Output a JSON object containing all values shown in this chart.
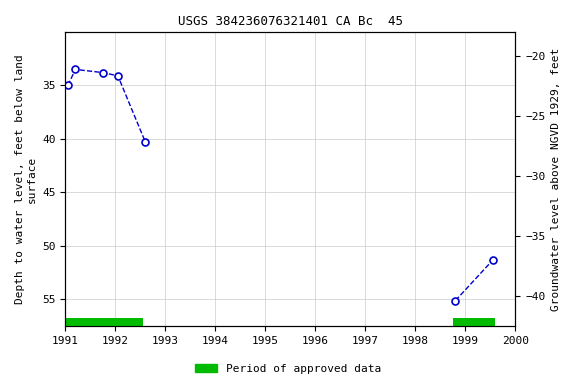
{
  "title": "USGS 384236076321401 CA Bc  45",
  "segments": [
    {
      "x": [
        1991.05,
        1991.2,
        1991.75,
        1992.05,
        1992.6
      ],
      "y": [
        35.0,
        33.5,
        33.8,
        34.1,
        40.3
      ]
    },
    {
      "x": [
        1998.8,
        1999.55
      ],
      "y": [
        55.1,
        51.3
      ]
    }
  ],
  "xlim": [
    1991,
    2000
  ],
  "xticks": [
    1991,
    1992,
    1993,
    1994,
    1995,
    1996,
    1997,
    1998,
    1999,
    2000
  ],
  "ylim_left": [
    57.5,
    30
  ],
  "ylim_right": [
    -42.5,
    -18
  ],
  "yticks_left": [
    35,
    40,
    45,
    50,
    55
  ],
  "yticks_right": [
    -20,
    -25,
    -30,
    -35,
    -40
  ],
  "ylabel_left": "Depth to water level, feet below land\nsurface",
  "ylabel_right": "Groundwater level above NGVD 1929, feet",
  "line_color": "#0000CC",
  "marker_facecolor": "white",
  "marker_edgecolor": "#0000CC",
  "marker_size": 5,
  "grid_color": "#cccccc",
  "bg_color": "#ffffff",
  "approved_bars": [
    {
      "x_start": 1991.0,
      "x_end": 1992.55
    },
    {
      "x_start": 1998.75,
      "x_end": 1999.6
    }
  ],
  "approved_bar_color": "#00bb00",
  "legend_label": "Period of approved data",
  "font_family": "monospace",
  "title_fontsize": 9,
  "axis_fontsize": 8,
  "tick_fontsize": 8
}
